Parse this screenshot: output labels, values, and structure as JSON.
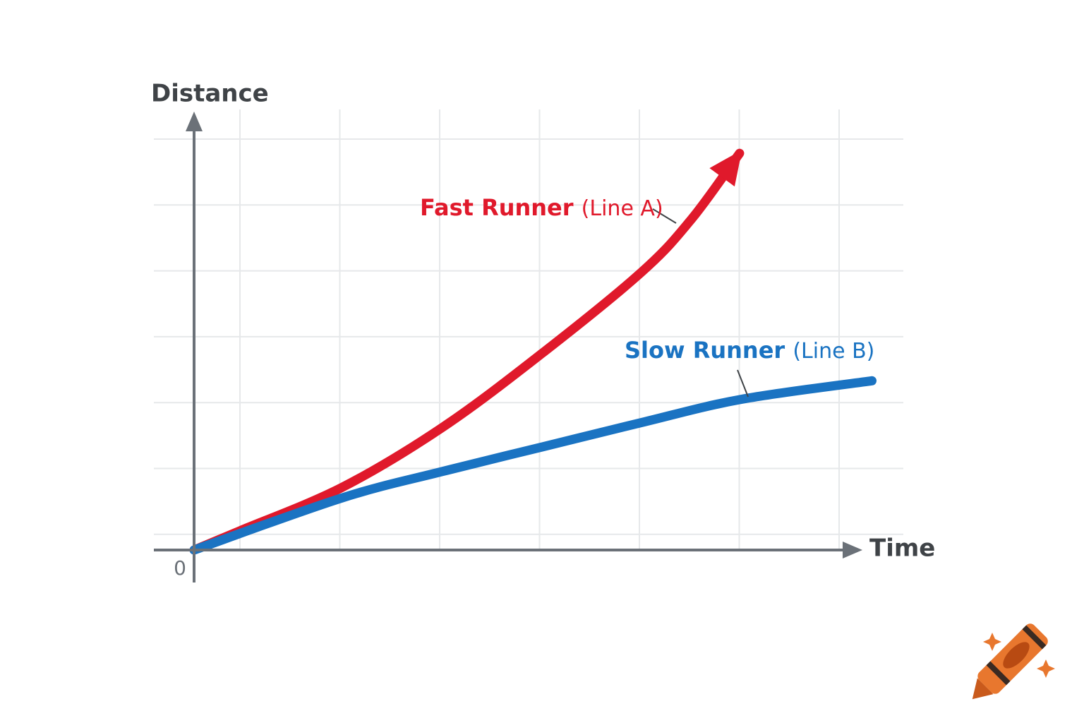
{
  "chart_data": {
    "type": "line",
    "x_label": "Time",
    "y_label": "Distance",
    "xlim": [
      0,
      6.7
    ],
    "ylim": [
      0,
      6.6
    ],
    "yticks": [
      0
    ],
    "grid": true,
    "series": [
      {
        "name": "Fast Runner",
        "tag": "(Line A)",
        "color": "#e0192b",
        "arrow": true,
        "x": [
          0,
          0.46,
          1.49,
          2.5,
          3.5,
          4.5,
          5.0,
          5.48
        ],
        "values": [
          0,
          0.29,
          0.95,
          1.86,
          2.98,
          4.21,
          5.01,
          6.0
        ]
      },
      {
        "name": "Slow Runner",
        "tag": "(Line B)",
        "color": "#1a73c2",
        "arrow": false,
        "x": [
          0,
          1.49,
          2.5,
          3.5,
          4.5,
          5.5,
          6.81
        ],
        "values": [
          0,
          0.79,
          1.19,
          1.56,
          1.93,
          2.28,
          2.56
        ]
      }
    ]
  }
}
